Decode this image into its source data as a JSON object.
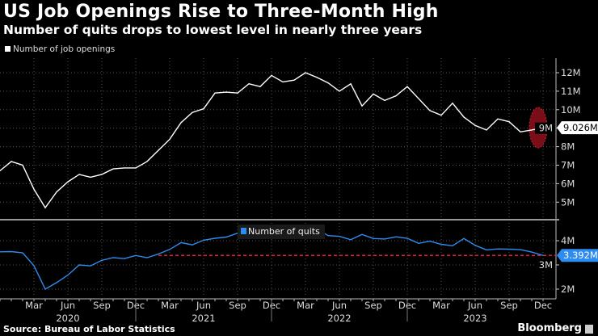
{
  "header": {
    "title": "US Job Openings Rise to Three-Month High",
    "subtitle": "Number of quits drops to lowest level in nearly three years"
  },
  "footer": {
    "source": "Source: Bureau of Labor Statistics",
    "brand": "Bloomberg"
  },
  "chart_data": [
    {
      "type": "line",
      "legend": "Number of job openings",
      "legend_placement": "top-left",
      "color": "#ffffff",
      "yticks": [
        "5M",
        "6M",
        "7M",
        "8M",
        "9M",
        "10M",
        "11M",
        "12M"
      ],
      "ylim": [
        4.1,
        12.7
      ],
      "grid": true,
      "last_value_label": "9.026M",
      "highlight_color": "#7a0e18",
      "x": [
        "2019-12",
        "2020-01",
        "2020-02",
        "2020-03",
        "2020-04",
        "2020-05",
        "2020-06",
        "2020-07",
        "2020-08",
        "2020-09",
        "2020-10",
        "2020-11",
        "2020-12",
        "2021-01",
        "2021-02",
        "2021-03",
        "2021-04",
        "2021-05",
        "2021-06",
        "2021-07",
        "2021-08",
        "2021-09",
        "2021-10",
        "2021-11",
        "2021-12",
        "2022-01",
        "2022-02",
        "2022-03",
        "2022-04",
        "2022-05",
        "2022-06",
        "2022-07",
        "2022-08",
        "2022-09",
        "2022-10",
        "2022-11",
        "2022-12",
        "2023-01",
        "2023-02",
        "2023-03",
        "2023-04",
        "2023-05",
        "2023-06",
        "2023-07",
        "2023-08",
        "2023-09",
        "2023-10",
        "2023-11",
        "2023-12"
      ],
      "values": [
        6.7,
        7.2,
        7.0,
        5.7,
        4.7,
        5.55,
        6.1,
        6.5,
        6.35,
        6.5,
        6.8,
        6.85,
        6.85,
        7.2,
        7.8,
        8.4,
        9.3,
        9.85,
        10.05,
        10.9,
        10.95,
        10.9,
        11.4,
        11.25,
        11.85,
        11.5,
        11.6,
        12.0,
        11.75,
        11.45,
        11.0,
        11.4,
        10.2,
        10.85,
        10.5,
        10.75,
        11.25,
        10.6,
        9.95,
        9.7,
        10.35,
        9.6,
        9.15,
        8.9,
        9.5,
        9.35,
        8.8,
        8.9,
        9.026
      ]
    },
    {
      "type": "line",
      "legend": "Number of quits",
      "legend_placement": "top-center",
      "color": "#2d8cf0",
      "yticks": [
        "2M",
        "3M",
        "4M"
      ],
      "ylim": [
        1.6,
        4.8
      ],
      "grid": true,
      "last_value_label": "3.392M",
      "reference_line": {
        "value": 3.392,
        "from": "2021-02",
        "color": "#e0203a",
        "style": "dashed"
      },
      "values": [
        3.54,
        3.55,
        3.5,
        2.97,
        2.0,
        2.27,
        2.58,
        3.0,
        2.96,
        3.19,
        3.3,
        3.26,
        3.39,
        3.3,
        3.45,
        3.64,
        3.92,
        3.83,
        4.02,
        4.1,
        4.15,
        4.31,
        4.35,
        4.4,
        4.35,
        4.3,
        4.45,
        4.45,
        4.49,
        4.21,
        4.18,
        4.04,
        4.26,
        4.09,
        4.07,
        4.16,
        4.1,
        3.89,
        3.98,
        3.85,
        3.79,
        4.09,
        3.81,
        3.62,
        3.66,
        3.65,
        3.63,
        3.53,
        3.392
      ]
    }
  ],
  "x_axis": {
    "month_ticks": [
      "Mar",
      "Jun",
      "Sep",
      "Dec",
      "Mar",
      "Jun",
      "Sep",
      "Dec",
      "Mar",
      "Jun",
      "Sep",
      "Dec",
      "Mar",
      "Jun",
      "Sep",
      "Dec"
    ],
    "years": [
      "2020",
      "2021",
      "2022",
      "2023"
    ]
  }
}
